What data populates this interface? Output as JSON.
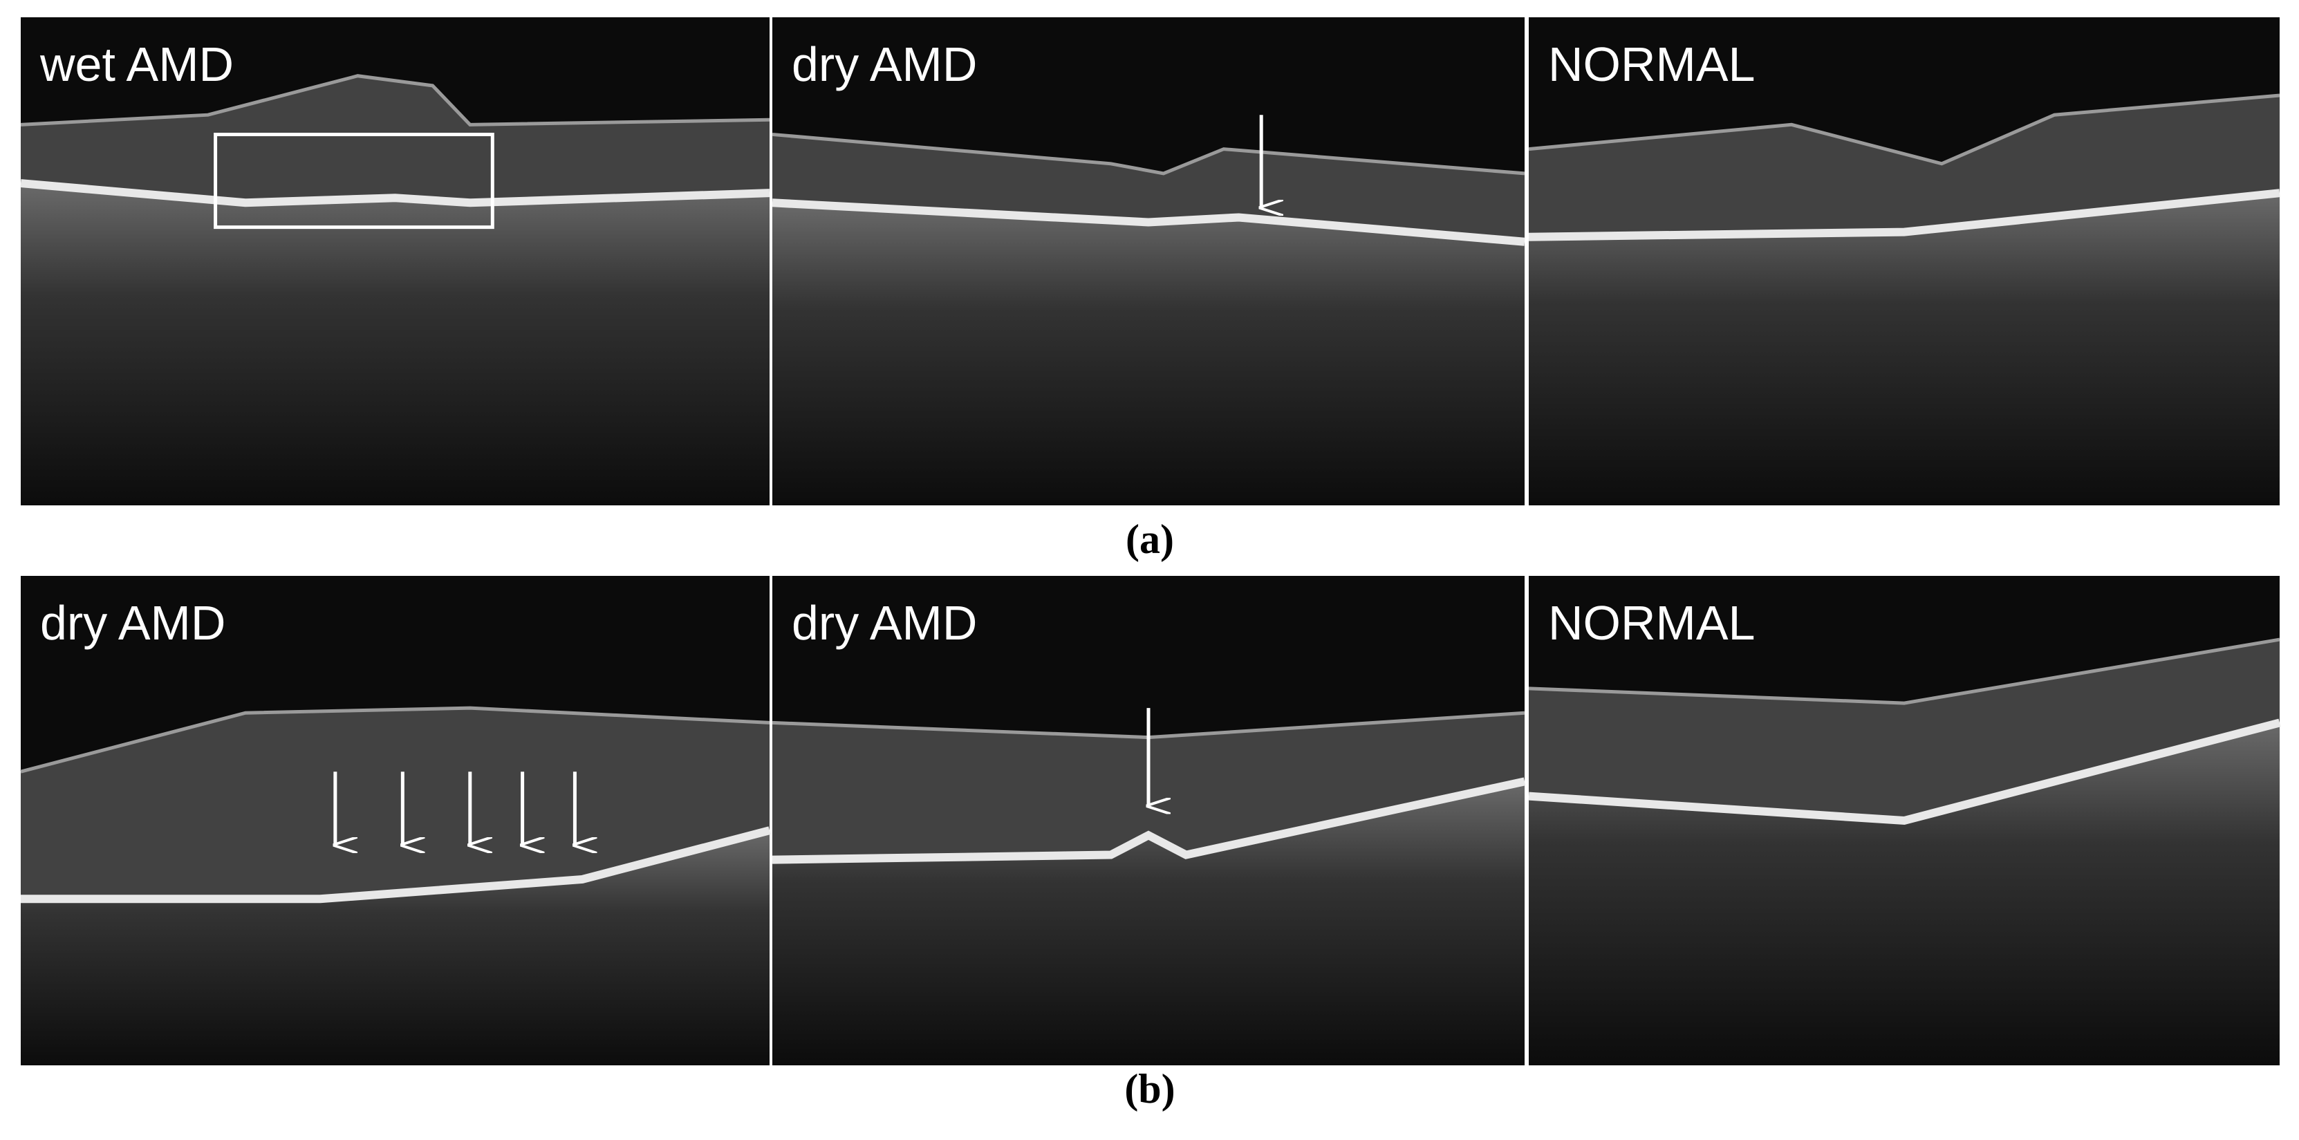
{
  "rows": [
    {
      "panels": [
        {
          "label": "wet AMD"
        },
        {
          "label": "dry AMD"
        },
        {
          "label": "NORMAL"
        }
      ],
      "caption": "(a)"
    },
    {
      "panels": [
        {
          "label": "dry AMD"
        },
        {
          "label": "dry AMD"
        },
        {
          "label": "NORMAL"
        }
      ],
      "caption": "(b)"
    }
  ]
}
